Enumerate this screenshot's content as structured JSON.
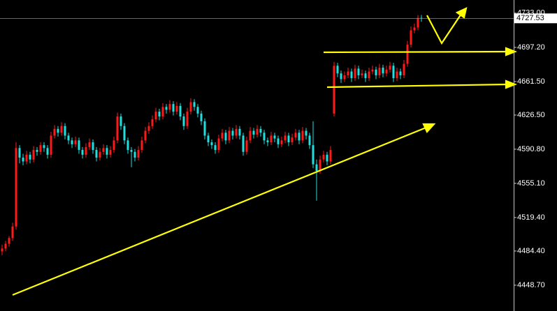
{
  "chart_data": {
    "type": "candlestick",
    "up_color": "#ff1a1a",
    "down_color": "#1fe0e0",
    "ylim": [
      4421.7,
      4746.7
    ],
    "yticks": [
      {
        "value": 4733,
        "label": "4733.00"
      },
      {
        "value": 4697.2,
        "label": "4697.20"
      },
      {
        "value": 4661.5,
        "label": "4661.50"
      },
      {
        "value": 4626.5,
        "label": "4626.50"
      },
      {
        "value": 4590.8,
        "label": "4590.80"
      },
      {
        "value": 4555.1,
        "label": "4555.10"
      },
      {
        "value": 4519.4,
        "label": "4519.40"
      },
      {
        "value": 4484.4,
        "label": "4484.40"
      },
      {
        "value": 4448.7,
        "label": "4448.70"
      }
    ],
    "last_price": 4727.53,
    "candles": [
      [
        4484,
        4491,
        4480,
        4487
      ],
      [
        4487,
        4495,
        4484,
        4492
      ],
      [
        4492,
        4500,
        4489,
        4498
      ],
      [
        4498,
        4514,
        4495,
        4510
      ],
      [
        4510,
        4598,
        4507,
        4592
      ],
      [
        4592,
        4595,
        4576,
        4582
      ],
      [
        4582,
        4586,
        4574,
        4578
      ],
      [
        4578,
        4589,
        4575,
        4585
      ],
      [
        4585,
        4588,
        4576,
        4580
      ],
      [
        4580,
        4594,
        4577,
        4590
      ],
      [
        4590,
        4593,
        4584,
        4588
      ],
      [
        4588,
        4598,
        4585,
        4595
      ],
      [
        4595,
        4598,
        4588,
        4592
      ],
      [
        4592,
        4595,
        4581,
        4585
      ],
      [
        4585,
        4609,
        4582,
        4605
      ],
      [
        4605,
        4616,
        4602,
        4612
      ],
      [
        4612,
        4615,
        4604,
        4608
      ],
      [
        4608,
        4619,
        4605,
        4615
      ],
      [
        4615,
        4618,
        4601,
        4605
      ],
      [
        4605,
        4608,
        4596,
        4600
      ],
      [
        4600,
        4603,
        4592,
        4596
      ],
      [
        4596,
        4604,
        4593,
        4600
      ],
      [
        4600,
        4603,
        4586,
        4590
      ],
      [
        4590,
        4593,
        4581,
        4585
      ],
      [
        4585,
        4597,
        4582,
        4593
      ],
      [
        4593,
        4602,
        4590,
        4598
      ],
      [
        4598,
        4601,
        4586,
        4590
      ],
      [
        4590,
        4593,
        4578,
        4582
      ],
      [
        4582,
        4592,
        4579,
        4588
      ],
      [
        4588,
        4596,
        4585,
        4592
      ],
      [
        4592,
        4595,
        4581,
        4585
      ],
      [
        4585,
        4594,
        4582,
        4590
      ],
      [
        4590,
        4604,
        4587,
        4600
      ],
      [
        4600,
        4629,
        4597,
        4625
      ],
      [
        4625,
        4628,
        4611,
        4615
      ],
      [
        4615,
        4618,
        4596,
        4600
      ],
      [
        4600,
        4603,
        4586,
        4590
      ],
      [
        4590,
        4593,
        4572,
        4588
      ],
      [
        4588,
        4591,
        4578,
        4582
      ],
      [
        4582,
        4594,
        4579,
        4590
      ],
      [
        4590,
        4604,
        4587,
        4600
      ],
      [
        4600,
        4614,
        4597,
        4610
      ],
      [
        4610,
        4619,
        4607,
        4615
      ],
      [
        4615,
        4626,
        4612,
        4622
      ],
      [
        4622,
        4634,
        4619,
        4630
      ],
      [
        4630,
        4633,
        4621,
        4625
      ],
      [
        4625,
        4639,
        4622,
        4635
      ],
      [
        4635,
        4638,
        4628,
        4632
      ],
      [
        4632,
        4642,
        4629,
        4638
      ],
      [
        4638,
        4641,
        4626,
        4630
      ],
      [
        4630,
        4640,
        4627,
        4636
      ],
      [
        4636,
        4639,
        4621,
        4625
      ],
      [
        4625,
        4628,
        4611,
        4615
      ],
      [
        4615,
        4634,
        4612,
        4630
      ],
      [
        4630,
        4644,
        4627,
        4640
      ],
      [
        4640,
        4643,
        4631,
        4635
      ],
      [
        4635,
        4638,
        4624,
        4628
      ],
      [
        4628,
        4631,
        4616,
        4620
      ],
      [
        4620,
        4623,
        4601,
        4605
      ],
      [
        4605,
        4608,
        4594,
        4598
      ],
      [
        4598,
        4601,
        4591,
        4595
      ],
      [
        4595,
        4598,
        4586,
        4590
      ],
      [
        4590,
        4606,
        4587,
        4602
      ],
      [
        4602,
        4612,
        4599,
        4608
      ],
      [
        4608,
        4611,
        4596,
        4600
      ],
      [
        4600,
        4614,
        4597,
        4610
      ],
      [
        4610,
        4613,
        4601,
        4605
      ],
      [
        4605,
        4616,
        4602,
        4612
      ],
      [
        4612,
        4615,
        4601,
        4605
      ],
      [
        4605,
        4608,
        4584,
        4588
      ],
      [
        4588,
        4604,
        4585,
        4600
      ],
      [
        4600,
        4614,
        4597,
        4610
      ],
      [
        4610,
        4613,
        4602,
        4606
      ],
      [
        4606,
        4616,
        4603,
        4612
      ],
      [
        4612,
        4615,
        4604,
        4608
      ],
      [
        4608,
        4611,
        4596,
        4600
      ],
      [
        4600,
        4603,
        4594,
        4598
      ],
      [
        4598,
        4609,
        4595,
        4605
      ],
      [
        4605,
        4608,
        4598,
        4602
      ],
      [
        4602,
        4605,
        4592,
        4596
      ],
      [
        4596,
        4604,
        4593,
        4600
      ],
      [
        4600,
        4609,
        4597,
        4605
      ],
      [
        4605,
        4608,
        4594,
        4598
      ],
      [
        4598,
        4607,
        4595,
        4603
      ],
      [
        4603,
        4612,
        4600,
        4608
      ],
      [
        4608,
        4611,
        4596,
        4600
      ],
      [
        4600,
        4614,
        4597,
        4610
      ],
      [
        4610,
        4613,
        4601,
        4605
      ],
      [
        4605,
        4608,
        4591,
        4595
      ],
      [
        4595,
        4620,
        4571,
        4575
      ],
      [
        4575,
        4580,
        4537,
        4568
      ],
      [
        4568,
        4584,
        4565,
        4580
      ],
      [
        4580,
        4589,
        4577,
        4585
      ],
      [
        4585,
        4588,
        4574,
        4578
      ],
      [
        4578,
        4594,
        4575,
        4590
      ],
      [
        4628,
        4682,
        4625,
        4678
      ],
      [
        4678,
        4681,
        4666,
        4670
      ],
      [
        4670,
        4673,
        4660,
        4664
      ],
      [
        4664,
        4672,
        4661,
        4668
      ],
      [
        4668,
        4676,
        4665,
        4672
      ],
      [
        4672,
        4675,
        4661,
        4665
      ],
      [
        4665,
        4679,
        4662,
        4675
      ],
      [
        4675,
        4678,
        4664,
        4668
      ],
      [
        4668,
        4674,
        4665,
        4670
      ],
      [
        4670,
        4673,
        4661,
        4665
      ],
      [
        4665,
        4676,
        4662,
        4672
      ],
      [
        4672,
        4678,
        4669,
        4674
      ],
      [
        4674,
        4677,
        4664,
        4668
      ],
      [
        4668,
        4680,
        4665,
        4676
      ],
      [
        4676,
        4679,
        4666,
        4670
      ],
      [
        4670,
        4678,
        4667,
        4674
      ],
      [
        4674,
        4682,
        4671,
        4678
      ],
      [
        4678,
        4681,
        4661,
        4665
      ],
      [
        4665,
        4676,
        4662,
        4672
      ],
      [
        4672,
        4675,
        4664,
        4668
      ],
      [
        4668,
        4684,
        4665,
        4680
      ],
      [
        4680,
        4704,
        4677,
        4700
      ],
      [
        4700,
        4719,
        4697,
        4715
      ],
      [
        4715,
        4722,
        4712,
        4718
      ],
      [
        4718,
        4731,
        4715,
        4728
      ],
      [
        4728,
        4731,
        4724,
        4727.53
      ]
    ]
  }
}
